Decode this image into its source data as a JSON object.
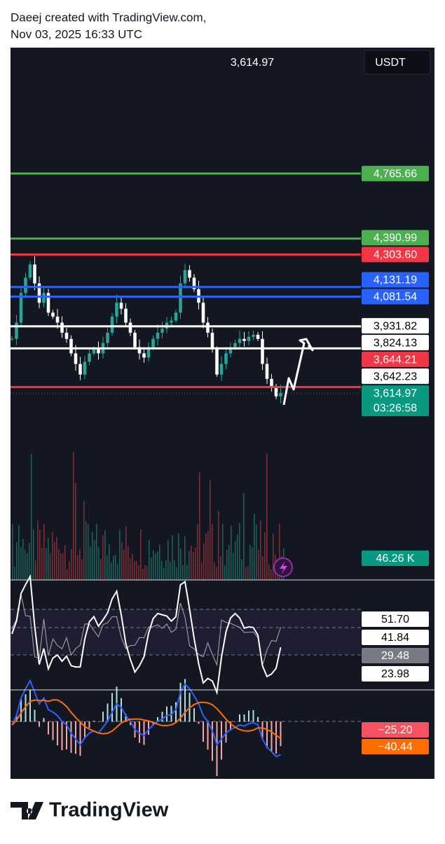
{
  "header": {
    "line1": "Daeej created with TradingView.com,",
    "line2": "Nov 03, 2025 16:33 UTC"
  },
  "toolbar": {
    "price": "3,614.97",
    "currency": "USDT"
  },
  "price_pane": {
    "log_scale": true,
    "range": [
      3408,
      5584
    ],
    "up_color": "#26a69a",
    "down_color": "#ffffff",
    "closes": [
      3870,
      3950,
      4100,
      4180,
      4250,
      4150,
      4050,
      4100,
      4000,
      3980,
      3950,
      3900,
      3870,
      3800,
      3750,
      3700,
      3760,
      3800,
      3820,
      3800,
      3850,
      3900,
      3980,
      4050,
      4020,
      3950,
      3900,
      3830,
      3800,
      3780,
      3830,
      3870,
      3900,
      3920,
      3950,
      3960,
      4000,
      4150,
      4220,
      4180,
      4120,
      4050,
      3950,
      3900,
      3820,
      3700,
      3750,
      3800,
      3830,
      3850,
      3870,
      3860,
      3880,
      3890,
      3870,
      3750,
      3680,
      3640,
      3600,
      3614.97
    ],
    "levels": [
      {
        "value": 4765.66,
        "label": "4,765.66",
        "color": "#4caf50",
        "text_color": "#ffffff",
        "line": true
      },
      {
        "value": 4390.99,
        "label": "4,390.99",
        "color": "#4caf50",
        "text_color": "#ffffff",
        "line": true
      },
      {
        "value": 4303.6,
        "label": "4,303.60",
        "color": "#f23645",
        "text_color": "#ffffff",
        "line": true
      },
      {
        "value": 4131.19,
        "label": "4,131.19",
        "color": "#2962ff",
        "text_color": "#ffffff",
        "line": true
      },
      {
        "value": 4081.54,
        "label": "4,081.54",
        "color": "#2962ff",
        "text_color": "#ffffff",
        "line": true
      },
      {
        "value": 3931.82,
        "label": "3,931.82",
        "color": "#ffffff",
        "text_color": "#000000",
        "line": true
      },
      {
        "value": 3824.13,
        "label": "3,824.13",
        "color": "#ffffff",
        "text_color": "#000000",
        "line": true
      },
      {
        "value": 3644.21,
        "label": "3,644.21",
        "color": "#f23645",
        "text_color": "#ffffff",
        "line": false
      },
      {
        "value": 3642.23,
        "label": "3,642.23",
        "color": "#ffffff",
        "text_color": "#000000",
        "line": true,
        "line_color": "#f23645"
      }
    ],
    "last": {
      "value": 3614.97,
      "label": "3,614.97",
      "countdown": "03:26:58",
      "color": "#089981"
    }
  },
  "volume_pane": {
    "label": "46.26 K",
    "color": "#089981"
  },
  "rsi_pane": {
    "labels": [
      {
        "label": "51.70",
        "color": "#ffffff",
        "text_color": "#000000"
      },
      {
        "label": "41.84",
        "color": "#ffffff",
        "text_color": "#000000"
      },
      {
        "label": "29.48",
        "color": "#787b86",
        "text_color": "#ffffff"
      },
      {
        "label": "23.98",
        "color": "#ffffff",
        "text_color": "#000000"
      }
    ]
  },
  "macd_pane": {
    "labels": [
      {
        "label": "−25.20",
        "color": "#f7525f",
        "text_color": "#ffffff"
      },
      {
        "label": "−40.44",
        "color": "#ff6d00",
        "text_color": "#ffffff"
      }
    ]
  },
  "footer": {
    "brand": "TradingView"
  }
}
